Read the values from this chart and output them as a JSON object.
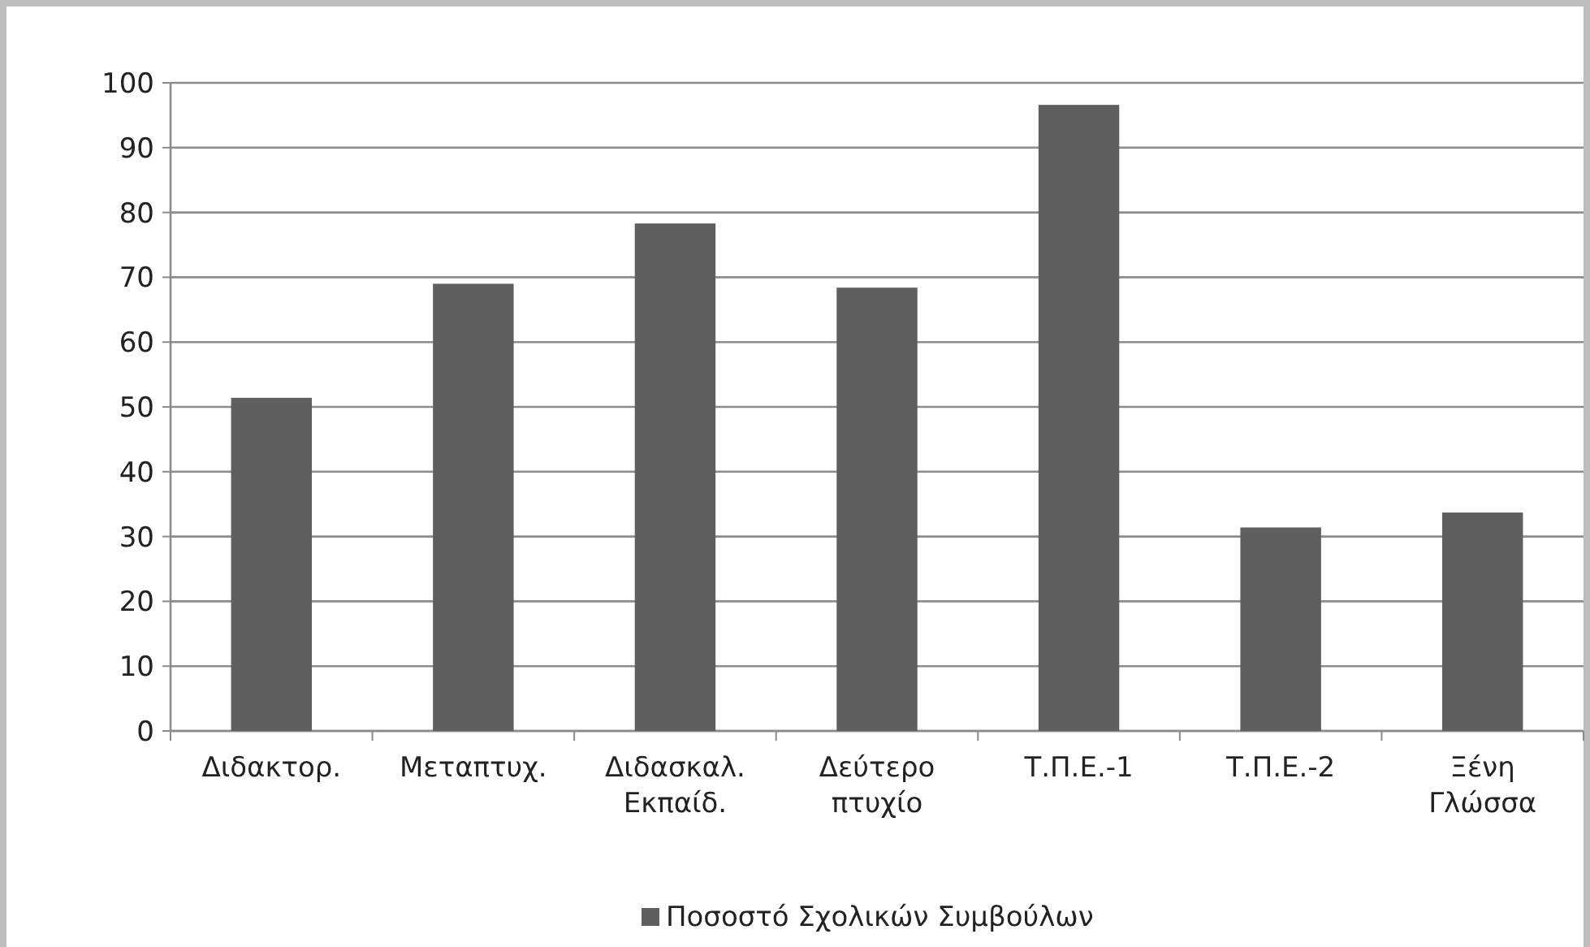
{
  "chart_data": {
    "type": "bar",
    "categories": [
      "Διδακτορ.",
      "Μεταπτυχ.",
      "Διδασκαλ.\nΕκπαίδ.",
      "Δεύτερο\nπτυχίο",
      "Τ.Π.Ε.-1",
      "Τ.Π.Ε.-2",
      "Ξένη\nΓλώσσα"
    ],
    "series": [
      {
        "name": "Ποσοστό Σχολικών Συμβούλων",
        "color": "#5f5f5f",
        "values": [
          51.4,
          69,
          78.3,
          68.4,
          96.6,
          31.4,
          33.7
        ]
      }
    ],
    "ylim": [
      0,
      100
    ],
    "yticks": [
      0,
      10,
      20,
      30,
      40,
      50,
      60,
      70,
      80,
      90,
      100
    ],
    "grid": "y",
    "legend": "bottom"
  }
}
